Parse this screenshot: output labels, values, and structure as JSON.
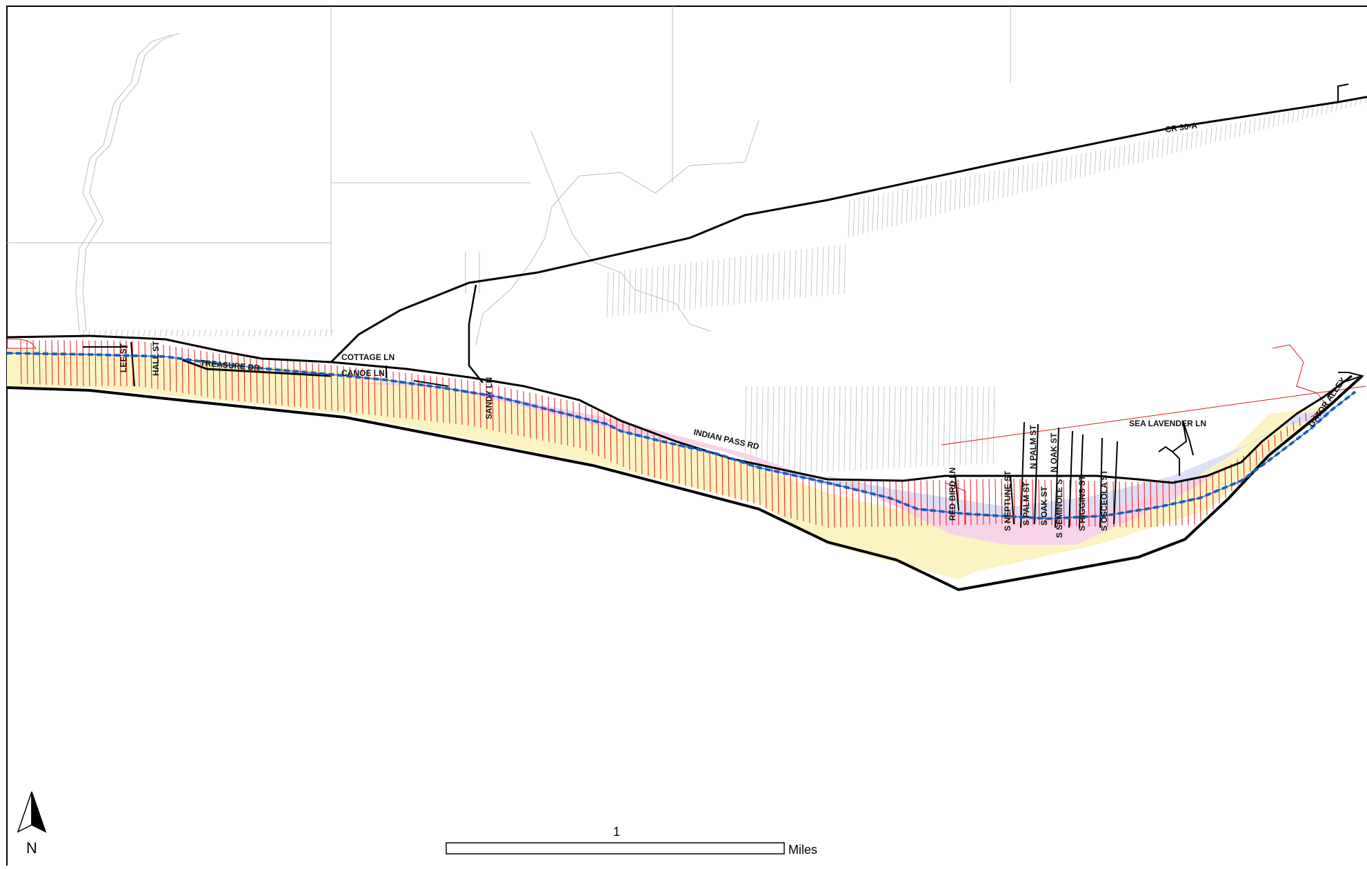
{
  "map": {
    "road_labels": {
      "cr30a": "CR 30-A",
      "lee_st": "LEE ST",
      "hall_st": "HALL ST",
      "treasure_dr": "TREASURE DR",
      "cottage_ln": "COTTAGE LN",
      "canoe_ln": "CANOE LN",
      "sandy_ln": "SANDY LN",
      "indian_pass_rd": "INDIAN PASS RD",
      "red_bird_ln": "RED BIRD LN",
      "s_neptune_st": "S NEPTUNE ST",
      "s_palm_st": "S PALM ST",
      "n_palm_st": "N PALM ST",
      "s_oak_st": "S OAK ST",
      "n_oak_st": "N OAK ST",
      "s_seminole_st": "S SEMINOLE ST",
      "s_higgins_st": "S HIGGINS ST",
      "s_osceola_st": "S OSCEOLA ST",
      "sea_lavender_ln": "SEA LAVENDER LN",
      "gator_alley": "GATOR ALLEY"
    },
    "north_arrow": {
      "icon": "north-arrow-icon",
      "label": "N"
    },
    "scale_bar": {
      "value": "1",
      "unit": "Miles"
    },
    "colors": {
      "road": "#000000",
      "parcel": "#e8141c",
      "trail": "#1a6fd8",
      "zone_yellow": "#fbf3c2",
      "zone_pink": "#f7d3e8",
      "zone_lavender": "#dcdff5",
      "parcel_background": "#bdbdbd"
    }
  }
}
